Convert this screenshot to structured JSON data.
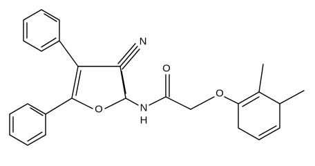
{
  "atoms": [
    {
      "label": "N"
    },
    {
      "label": "O"
    },
    {
      "label": "N"
    },
    {
      "label": "H"
    },
    {
      "label": "O"
    },
    {
      "label": "O"
    }
  ]
}
